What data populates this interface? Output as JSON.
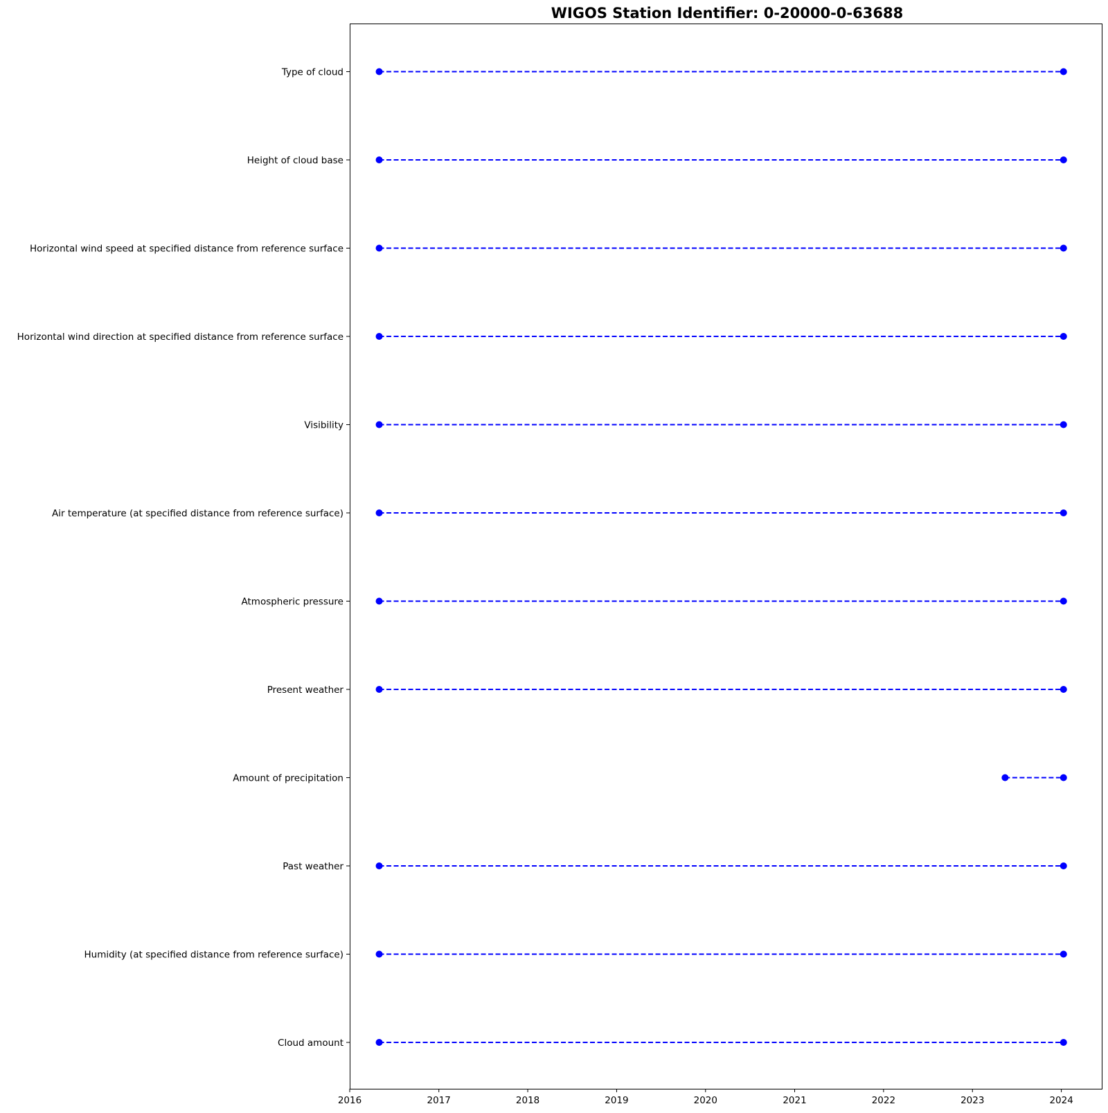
{
  "chart_data": {
    "type": "line",
    "title": "WIGOS Station Identifier: 0-20000-0-63688",
    "xlabel": "",
    "ylabel": "",
    "x_axis_type": "date",
    "xlim": [
      "2016-01-01",
      "2024-06-15"
    ],
    "xticks": [
      "2016",
      "2017",
      "2018",
      "2019",
      "2020",
      "2021",
      "2022",
      "2023",
      "2024"
    ],
    "categories": [
      "Cloud amount",
      "Humidity  (at specified distance from reference surface)",
      "Past weather",
      "Amount of precipitation",
      "Present weather",
      "Atmospheric pressure",
      "Air temperature (at specified distance from reference surface)",
      "Visibility",
      "Horizontal wind direction at specified distance from reference surface",
      "Horizontal wind speed at specified distance from reference surface",
      "Height of cloud base",
      "Type of cloud"
    ],
    "ranges": [
      {
        "category": "Cloud amount",
        "start": "2016-05-01",
        "end": "2024-01-10"
      },
      {
        "category": "Humidity  (at specified distance from reference surface)",
        "start": "2016-05-01",
        "end": "2024-01-10"
      },
      {
        "category": "Past weather",
        "start": "2016-05-01",
        "end": "2024-01-10"
      },
      {
        "category": "Amount of precipitation",
        "start": "2023-05-15",
        "end": "2024-01-10"
      },
      {
        "category": "Present weather",
        "start": "2016-05-01",
        "end": "2024-01-10"
      },
      {
        "category": "Atmospheric pressure",
        "start": "2016-05-01",
        "end": "2024-01-10"
      },
      {
        "category": "Air temperature (at specified distance from reference surface)",
        "start": "2016-05-01",
        "end": "2024-01-10"
      },
      {
        "category": "Visibility",
        "start": "2016-05-01",
        "end": "2024-01-10"
      },
      {
        "category": "Horizontal wind direction at specified distance from reference surface",
        "start": "2016-05-01",
        "end": "2024-01-10"
      },
      {
        "category": "Horizontal wind speed at specified distance from reference surface",
        "start": "2016-05-01",
        "end": "2024-01-10"
      },
      {
        "category": "Height of cloud base",
        "start": "2016-05-01",
        "end": "2024-01-10"
      },
      {
        "category": "Type of cloud",
        "start": "2016-05-01",
        "end": "2024-01-10"
      }
    ],
    "line_style": "dashed",
    "marker": "circle",
    "color": "#0000ff",
    "grid": false,
    "legend": "none"
  }
}
